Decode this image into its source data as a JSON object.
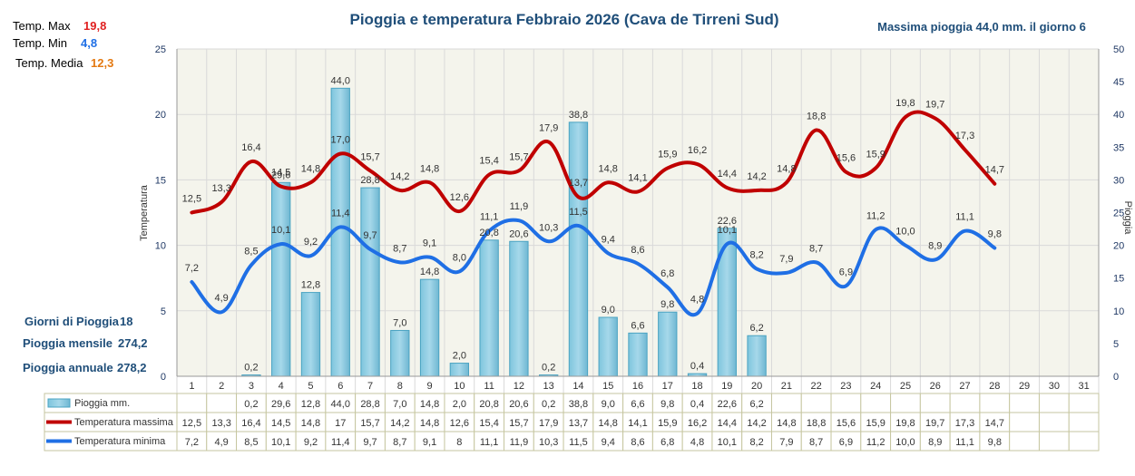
{
  "header": {
    "title": "Pioggia e temperatura Febbraio 2026 (Cava de Tirreni Sud)",
    "max_rain": "Massima pioggia  44,0 mm. il giorno 6"
  },
  "stats": {
    "tmax_label": "Temp. Max",
    "tmax_value": "19,8",
    "tmin_label": "Temp. Min",
    "tmin_value": "4,8",
    "tavg_label": "Temp. Media",
    "tavg_value": "12,3"
  },
  "summary": {
    "rain_days_label": "Giorni di Pioggia",
    "rain_days_value": "18",
    "monthly_label": "Pioggia mensile",
    "monthly_value": "274,2",
    "annual_label": "Pioggia annuale",
    "annual_value": "278,2"
  },
  "colors": {
    "tmax": "#c00000",
    "tmin": "#1f6fe5",
    "bar": "#a6d8ea",
    "bar_stroke": "#4aa3c2",
    "grid": "#d9d9d9",
    "axis_text": "#1f3864",
    "title": "#1f4e79",
    "plot_bg": "#f4f4ec",
    "max_red": "#e02020",
    "min_blue": "#1f6fe5",
    "avg_orange": "#e47911"
  },
  "chart_data": {
    "type": "bar+line",
    "title": "Pioggia e temperatura Febbraio 2026 (Cava de Tirreni Sud)",
    "ylabel_left": "Temperatura",
    "ylabel_right": "Pioggia",
    "ylim_left": [
      0,
      25
    ],
    "ylim_right": [
      0,
      50
    ],
    "yticks_left": [
      "0",
      "5",
      "10",
      "15",
      "20",
      "25"
    ],
    "yticks_right": [
      "0",
      "5",
      "10",
      "15",
      "20",
      "25",
      "30",
      "35",
      "40",
      "45",
      "50"
    ],
    "categories": [
      "1",
      "2",
      "3",
      "4",
      "5",
      "6",
      "7",
      "8",
      "9",
      "10",
      "11",
      "12",
      "13",
      "14",
      "15",
      "16",
      "17",
      "18",
      "19",
      "20",
      "21",
      "22",
      "23",
      "24",
      "25",
      "26",
      "27",
      "28",
      "29",
      "30",
      "31"
    ],
    "rain": {
      "name": "Pioggia mm.",
      "values": [
        null,
        null,
        0.2,
        29.6,
        12.8,
        44.0,
        28.8,
        7.0,
        14.8,
        2.0,
        20.8,
        20.6,
        0.2,
        38.8,
        9.0,
        6.6,
        9.8,
        0.4,
        22.6,
        6.2,
        null,
        null,
        null,
        null,
        null,
        null,
        null,
        null,
        null,
        null,
        null
      ],
      "labels": [
        "",
        "",
        "0,2",
        "29,6",
        "12,8",
        "44,0",
        "28,8",
        "7,0",
        "14,8",
        "2,0",
        "20,8",
        "20,6",
        "0,2",
        "38,8",
        "9,0",
        "6,6",
        "9,8",
        "0,4",
        "22,6",
        "6,2",
        "",
        "",
        "",
        "",
        "",
        "",
        "",
        "",
        "",
        "",
        ""
      ],
      "table": [
        "",
        "",
        "0,2",
        "29,6",
        "12,8",
        "44,0",
        "28,8",
        "7,0",
        "14,8",
        "2,0",
        "20,8",
        "20,6",
        "0,2",
        "38,8",
        "9,0",
        "6,6",
        "9,8",
        "0,4",
        "22,6",
        "6,2",
        "",
        "",
        "",
        "",
        "",
        "",
        "",
        "",
        "",
        "",
        ""
      ]
    },
    "tmax": {
      "name": "Temperatura massima",
      "values": [
        12.5,
        13.3,
        16.4,
        14.5,
        14.8,
        17.0,
        15.7,
        14.2,
        14.8,
        12.6,
        15.4,
        15.7,
        17.9,
        13.7,
        14.8,
        14.1,
        15.9,
        16.2,
        14.4,
        14.2,
        14.8,
        18.8,
        15.6,
        15.9,
        19.8,
        19.7,
        17.3,
        14.7,
        null,
        null,
        null
      ],
      "labels": [
        "12,5",
        "13,3",
        "16,4",
        "14,5",
        "14,8",
        "17,0",
        "15,7",
        "14,2",
        "14,8",
        "12,6",
        "15,4",
        "15,7",
        "17,9",
        "13,7",
        "14,8",
        "14,1",
        "15,9",
        "16,2",
        "14,4",
        "14,2",
        "14,8",
        "18,8",
        "15,6",
        "15,9",
        "19,8",
        "19,7",
        "17,3",
        "14,7",
        "",
        "",
        ""
      ],
      "table": [
        "12,5",
        "13,3",
        "16,4",
        "14,5",
        "14,8",
        "17",
        "15,7",
        "14,2",
        "14,8",
        "12,6",
        "15,4",
        "15,7",
        "17,9",
        "13,7",
        "14,8",
        "14,1",
        "15,9",
        "16,2",
        "14,4",
        "14,2",
        "14,8",
        "18,8",
        "15,6",
        "15,9",
        "19,8",
        "19,7",
        "17,3",
        "14,7",
        "",
        "",
        ""
      ]
    },
    "tmin": {
      "name": "Temperatura minima",
      "values": [
        7.2,
        4.9,
        8.5,
        10.1,
        9.2,
        11.4,
        9.7,
        8.7,
        9.1,
        8.0,
        11.1,
        11.9,
        10.3,
        11.5,
        9.4,
        8.6,
        6.8,
        4.8,
        10.1,
        8.2,
        7.9,
        8.7,
        6.9,
        11.2,
        10.0,
        8.9,
        11.1,
        9.8,
        null,
        null,
        null
      ],
      "labels": [
        "7,2",
        "4,9",
        "8,5",
        "10,1",
        "9,2",
        "11,4",
        "9,7",
        "8,7",
        "9,1",
        "8,0",
        "11,1",
        "11,9",
        "10,3",
        "11,5",
        "9,4",
        "8,6",
        "6,8",
        "4,8",
        "10,1",
        "8,2",
        "7,9",
        "8,7",
        "6,9",
        "11,2",
        "10,0",
        "8,9",
        "11,1",
        "9,8",
        "",
        "",
        ""
      ],
      "table": [
        "7,2",
        "4,9",
        "8,5",
        "10,1",
        "9,2",
        "11,4",
        "9,7",
        "8,7",
        "9,1",
        "8",
        "11,1",
        "11,9",
        "10,3",
        "11,5",
        "9,4",
        "8,6",
        "6,8",
        "4,8",
        "10,1",
        "8,2",
        "7,9",
        "8,7",
        "6,9",
        "11,2",
        "10,0",
        "8,9",
        "11,1",
        "9,8",
        "",
        "",
        ""
      ]
    }
  }
}
